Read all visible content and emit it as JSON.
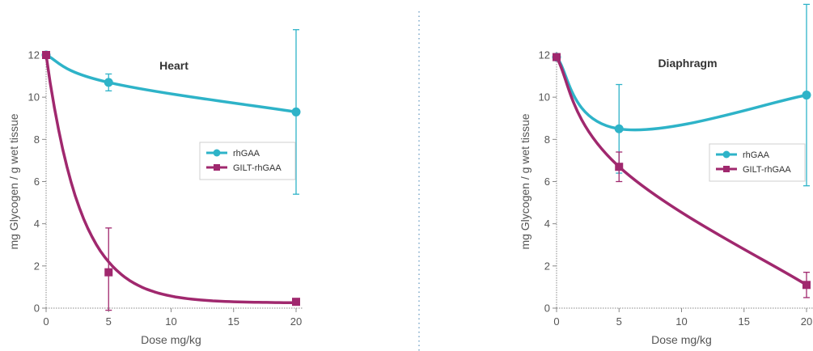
{
  "colors": {
    "rhGAA": "#2EB3C8",
    "GILT-rhGAA": "#A0286E",
    "axis": "#888888",
    "divider": "#7BA7C9"
  },
  "chart_data": [
    {
      "type": "line",
      "title": "Heart",
      "xlabel": "Dose mg/kg",
      "ylabel": "mg Glycogen / g wet tissue",
      "xlim": [
        0,
        20
      ],
      "ylim": [
        0,
        12
      ],
      "xticks": [
        0,
        5,
        10,
        15,
        20
      ],
      "yticks": [
        0,
        2,
        4,
        6,
        8,
        10,
        12
      ],
      "grid": false,
      "legend_position": "right",
      "series": [
        {
          "name": "rhGAA",
          "marker": "circle",
          "x": [
            0,
            5,
            20
          ],
          "y": [
            12,
            10.7,
            9.3
          ],
          "error": [
            0,
            0.4,
            3.9
          ]
        },
        {
          "name": "GILT-rhGAA",
          "marker": "square",
          "x": [
            0,
            5,
            20
          ],
          "y": [
            12,
            1.7,
            0.3
          ],
          "error": [
            0,
            2.1,
            0
          ]
        }
      ]
    },
    {
      "type": "line",
      "title": "Diaphragm",
      "xlabel": "Dose mg/kg",
      "ylabel": "mg Glycogen / g wet tissue",
      "xlim": [
        0,
        20
      ],
      "ylim": [
        0,
        12
      ],
      "xticks": [
        0,
        5,
        10,
        15,
        20
      ],
      "yticks": [
        0,
        2,
        4,
        6,
        8,
        10,
        12
      ],
      "grid": false,
      "legend_position": "right",
      "series": [
        {
          "name": "rhGAA",
          "marker": "circle",
          "x": [
            0,
            5,
            20
          ],
          "y": [
            11.9,
            8.5,
            10.1
          ],
          "error": [
            0,
            2.1,
            4.3
          ]
        },
        {
          "name": "GILT-rhGAA",
          "marker": "square",
          "x": [
            0,
            5,
            20
          ],
          "y": [
            11.9,
            6.7,
            1.1
          ],
          "error": [
            0,
            0.7,
            0.6
          ]
        }
      ]
    }
  ]
}
